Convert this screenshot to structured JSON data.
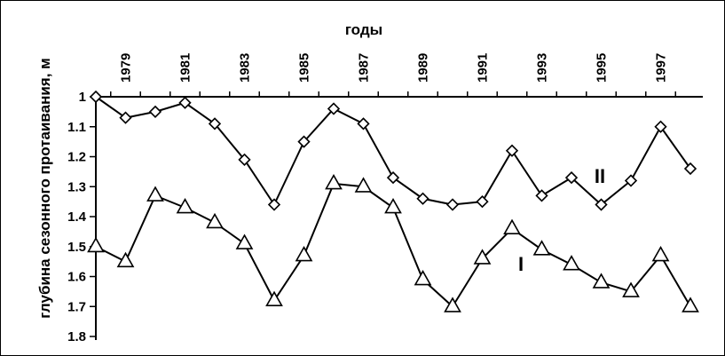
{
  "chart_data": {
    "type": "line",
    "xlabel": "годы",
    "ylabel": "глубина сезонного протаивания, м",
    "x": [
      1978,
      1979,
      1980,
      1981,
      1982,
      1983,
      1984,
      1985,
      1986,
      1987,
      1988,
      1989,
      1990,
      1991,
      1992,
      1993,
      1994,
      1995,
      1996,
      1997,
      1998
    ],
    "x_tick_labels": [
      "1979",
      "1981",
      "1983",
      "1985",
      "1987",
      "1989",
      "1991",
      "1993",
      "1995",
      "1997"
    ],
    "y_tick_labels": [
      "1",
      "1.1",
      "1.2",
      "1.3",
      "1.4",
      "1.5",
      "1.6",
      "1.7",
      "1.8"
    ],
    "ylim": [
      1.0,
      1.8
    ],
    "y_inverted": true,
    "x_axis_position": "top",
    "grid": false,
    "series": [
      {
        "name": "II",
        "marker": "diamond",
        "values": [
          1.0,
          1.07,
          1.05,
          1.02,
          1.09,
          1.21,
          1.36,
          1.15,
          1.04,
          1.09,
          1.27,
          1.34,
          1.36,
          1.35,
          1.18,
          1.33,
          1.27,
          1.36,
          1.28,
          1.1,
          1.24
        ]
      },
      {
        "name": "I",
        "marker": "triangle",
        "values": [
          1.5,
          1.55,
          1.33,
          1.37,
          1.42,
          1.49,
          1.68,
          1.53,
          1.29,
          1.3,
          1.37,
          1.61,
          1.7,
          1.54,
          1.44,
          1.51,
          1.56,
          1.62,
          1.65,
          1.53,
          1.7
        ]
      }
    ]
  }
}
